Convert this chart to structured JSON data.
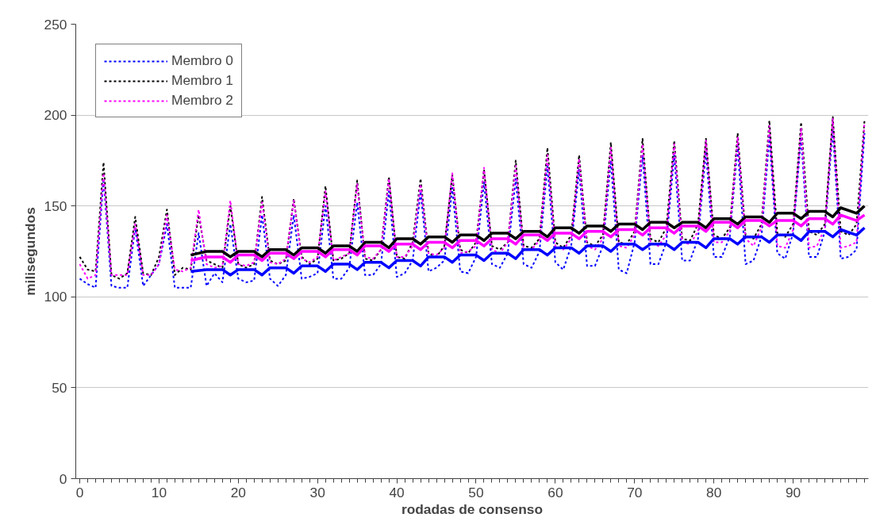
{
  "chart_data": {
    "type": "line",
    "xlabel": "rodadas de consenso",
    "ylabel": "milisegundos",
    "x": [
      0,
      1,
      2,
      3,
      4,
      5,
      6,
      7,
      8,
      9,
      10,
      11,
      12,
      13,
      14,
      15,
      16,
      17,
      18,
      19,
      20,
      21,
      22,
      23,
      24,
      25,
      26,
      27,
      28,
      29,
      30,
      31,
      32,
      33,
      34,
      35,
      36,
      37,
      38,
      39,
      40,
      41,
      42,
      43,
      44,
      45,
      46,
      47,
      48,
      49,
      50,
      51,
      52,
      53,
      54,
      55,
      56,
      57,
      58,
      59,
      60,
      61,
      62,
      63,
      64,
      65,
      66,
      67,
      68,
      69,
      70,
      71,
      72,
      73,
      74,
      75,
      76,
      77,
      78,
      79,
      80,
      81,
      82,
      83,
      84,
      85,
      86,
      87,
      88,
      89,
      90,
      91,
      92,
      93,
      94,
      95,
      96,
      97,
      98,
      99
    ],
    "series": [
      {
        "name": "Membro 0",
        "color": "#0000ff",
        "line_style": "dotted",
        "values": [
          110,
          107,
          105,
          165,
          106,
          105,
          105,
          138,
          106,
          112,
          118,
          140,
          105,
          105,
          105,
          135,
          106,
          113,
          108,
          140,
          110,
          108,
          109,
          145,
          110,
          106,
          112,
          145,
          110,
          111,
          113,
          150,
          110,
          110,
          116,
          152,
          112,
          112,
          118,
          158,
          111,
          113,
          120,
          158,
          114,
          116,
          120,
          160,
          114,
          113,
          122,
          163,
          118,
          116,
          124,
          165,
          118,
          116,
          125,
          172,
          119,
          115,
          128,
          170,
          117,
          117,
          128,
          175,
          115,
          113,
          130,
          178,
          118,
          118,
          130,
          178,
          120,
          120,
          132,
          180,
          122,
          122,
          133,
          183,
          118,
          120,
          133,
          188,
          124,
          121,
          135,
          188,
          122,
          122,
          136,
          192,
          121,
          122,
          126,
          190
        ]
      },
      {
        "name": "Membro 1",
        "color": "#000000",
        "line_style": "dotted",
        "values": [
          122,
          115,
          114,
          174,
          112,
          110,
          113,
          144,
          113,
          112,
          122,
          148,
          112,
          116,
          115,
          145,
          120,
          118,
          116,
          150,
          118,
          116,
          118,
          155,
          120,
          118,
          120,
          154,
          122,
          118,
          121,
          161,
          120,
          121,
          124,
          164,
          121,
          120,
          126,
          166,
          122,
          121,
          130,
          165,
          124,
          122,
          128,
          167,
          126,
          124,
          130,
          170,
          128,
          126,
          130,
          175,
          128,
          127,
          132,
          182,
          130,
          127,
          134,
          178,
          130,
          128,
          134,
          185,
          130,
          129,
          136,
          187,
          132,
          130,
          138,
          186,
          132,
          131,
          140,
          187,
          134,
          132,
          138,
          190,
          134,
          132,
          140,
          197,
          135,
          133,
          140,
          196,
          136,
          134,
          140,
          199,
          136,
          134,
          140,
          197
        ]
      },
      {
        "name": "Membro 2",
        "color": "#ff00ff",
        "line_style": "dotted",
        "values": [
          118,
          110,
          112,
          168,
          112,
          112,
          112,
          140,
          112,
          112,
          118,
          145,
          115,
          114,
          116,
          148,
          118,
          116,
          117,
          153,
          118,
          117,
          119,
          152,
          119,
          118,
          121,
          153,
          121,
          119,
          122,
          158,
          120,
          122,
          124,
          162,
          122,
          121,
          126,
          165,
          122,
          122,
          128,
          162,
          124,
          123,
          127,
          168,
          124,
          125,
          128,
          171,
          126,
          124,
          130,
          172,
          126,
          126,
          131,
          178,
          128,
          126,
          132,
          176,
          128,
          126,
          132,
          182,
          128,
          127,
          134,
          184,
          130,
          128,
          134,
          184,
          130,
          129,
          136,
          186,
          130,
          130,
          136,
          188,
          132,
          128,
          138,
          194,
          128,
          127,
          137,
          193,
          127,
          128,
          138,
          198,
          127,
          128,
          130,
          196
        ]
      },
      {
        "color": "#000000",
        "line_style": "solid",
        "x": [
          14,
          16,
          18,
          19,
          20,
          22,
          23,
          24,
          26,
          27,
          28,
          30,
          31,
          32,
          34,
          35,
          36,
          38,
          39,
          40,
          42,
          43,
          44,
          46,
          47,
          48,
          50,
          51,
          52,
          54,
          55,
          56,
          58,
          59,
          60,
          62,
          63,
          64,
          66,
          67,
          68,
          70,
          71,
          72,
          74,
          75,
          76,
          78,
          79,
          80,
          82,
          83,
          84,
          86,
          87,
          88,
          90,
          91,
          92,
          94,
          95,
          96,
          98,
          99
        ],
        "values": [
          123,
          125,
          125,
          122,
          125,
          125,
          122,
          126,
          126,
          123,
          127,
          127,
          124,
          128,
          128,
          125,
          130,
          130,
          127,
          132,
          132,
          129,
          133,
          133,
          130,
          134,
          134,
          131,
          135,
          135,
          132,
          136,
          136,
          133,
          138,
          138,
          135,
          139,
          139,
          136,
          140,
          140,
          137,
          141,
          141,
          138,
          141,
          141,
          138,
          143,
          143,
          140,
          144,
          144,
          141,
          146,
          146,
          143,
          147,
          147,
          144,
          149,
          146,
          150
        ]
      },
      {
        "color": "#ff00ff",
        "line_style": "solid",
        "x": [
          14,
          16,
          18,
          19,
          20,
          22,
          23,
          24,
          26,
          27,
          28,
          30,
          31,
          32,
          34,
          35,
          36,
          38,
          39,
          40,
          42,
          43,
          44,
          46,
          47,
          48,
          50,
          51,
          52,
          54,
          55,
          56,
          58,
          59,
          60,
          62,
          63,
          64,
          66,
          67,
          68,
          70,
          71,
          72,
          74,
          75,
          76,
          78,
          79,
          80,
          82,
          83,
          84,
          86,
          87,
          88,
          90,
          91,
          92,
          94,
          95,
          96,
          98,
          99
        ],
        "values": [
          120,
          122,
          122,
          119,
          123,
          123,
          120,
          124,
          124,
          121,
          125,
          125,
          122,
          126,
          126,
          123,
          128,
          128,
          125,
          129,
          129,
          126,
          130,
          130,
          127,
          131,
          131,
          128,
          132,
          132,
          129,
          134,
          134,
          131,
          135,
          135,
          132,
          136,
          136,
          133,
          137,
          137,
          134,
          138,
          138,
          135,
          139,
          139,
          136,
          141,
          141,
          138,
          142,
          142,
          139,
          142,
          142,
          139,
          143,
          143,
          140,
          145,
          142,
          145
        ]
      },
      {
        "color": "#0000ff",
        "line_style": "solid",
        "x": [
          14,
          16,
          18,
          19,
          20,
          22,
          23,
          24,
          26,
          27,
          28,
          30,
          31,
          32,
          34,
          35,
          36,
          38,
          39,
          40,
          42,
          43,
          44,
          46,
          47,
          48,
          50,
          51,
          52,
          54,
          55,
          56,
          58,
          59,
          60,
          62,
          63,
          64,
          66,
          67,
          68,
          70,
          71,
          72,
          74,
          75,
          76,
          78,
          79,
          80,
          82,
          83,
          84,
          86,
          87,
          88,
          90,
          91,
          92,
          94,
          95,
          96,
          98,
          99
        ],
        "values": [
          114,
          115,
          115,
          112,
          115,
          115,
          112,
          116,
          116,
          113,
          117,
          117,
          114,
          118,
          118,
          115,
          119,
          119,
          116,
          120,
          120,
          117,
          122,
          122,
          119,
          123,
          123,
          120,
          124,
          124,
          121,
          126,
          126,
          123,
          127,
          127,
          124,
          128,
          128,
          125,
          129,
          129,
          126,
          129,
          129,
          126,
          130,
          130,
          127,
          132,
          132,
          129,
          133,
          133,
          130,
          134,
          134,
          131,
          136,
          136,
          133,
          137,
          134,
          138
        ]
      }
    ],
    "xlim": [
      -0.5,
      99.5
    ],
    "xticks": [
      0,
      10,
      20,
      30,
      40,
      50,
      60,
      70,
      80,
      90
    ],
    "ylim": [
      0,
      250
    ],
    "yticks": [
      0,
      50,
      100,
      150,
      200,
      250
    ],
    "grid": "y",
    "legend": "top left",
    "marker": "none"
  }
}
